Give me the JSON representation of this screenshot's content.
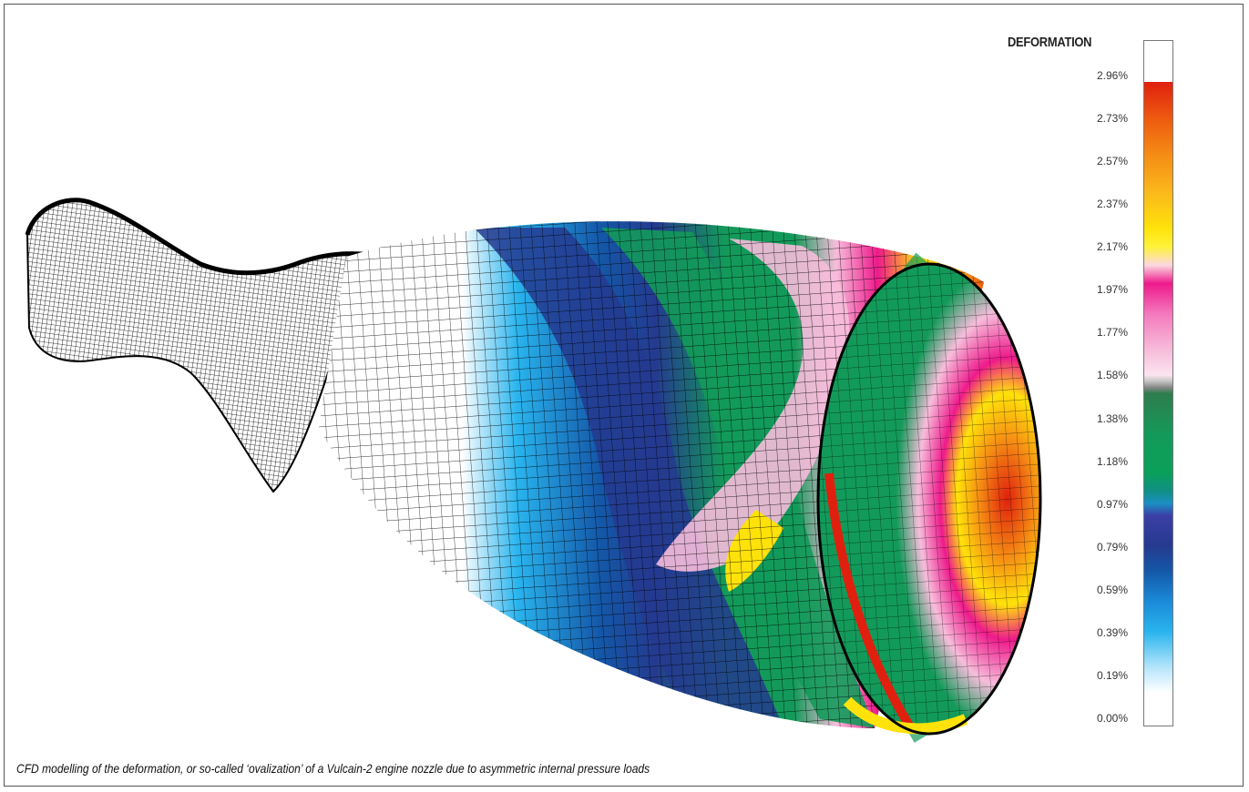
{
  "legend": {
    "title": "DEFORMATION",
    "ticks": [
      "2.96%",
      "2.73%",
      "2.57%",
      "2.37%",
      "2.17%",
      "1.97%",
      "1.77%",
      "1.58%",
      "1.38%",
      "1.18%",
      "0.97%",
      "0.79%",
      "0.59%",
      "0.39%",
      "0.19%",
      "0.00%"
    ]
  },
  "caption": "CFD modelling of the deformation, or so-called ‘ovalization’ of a Vulcain-2 engine nozzle due to asymmetric internal pressure loads",
  "colors": {
    "red": "#e0200e",
    "orange": "#f58d14",
    "yellow": "#ffe20a",
    "magenta": "#ee1a8c",
    "pink": "#f7bddb",
    "green": "#139a5a",
    "dark_blue": "#253a8f",
    "blue": "#1457a8",
    "light_blue": "#29b4ee",
    "mesh": "#000000"
  }
}
